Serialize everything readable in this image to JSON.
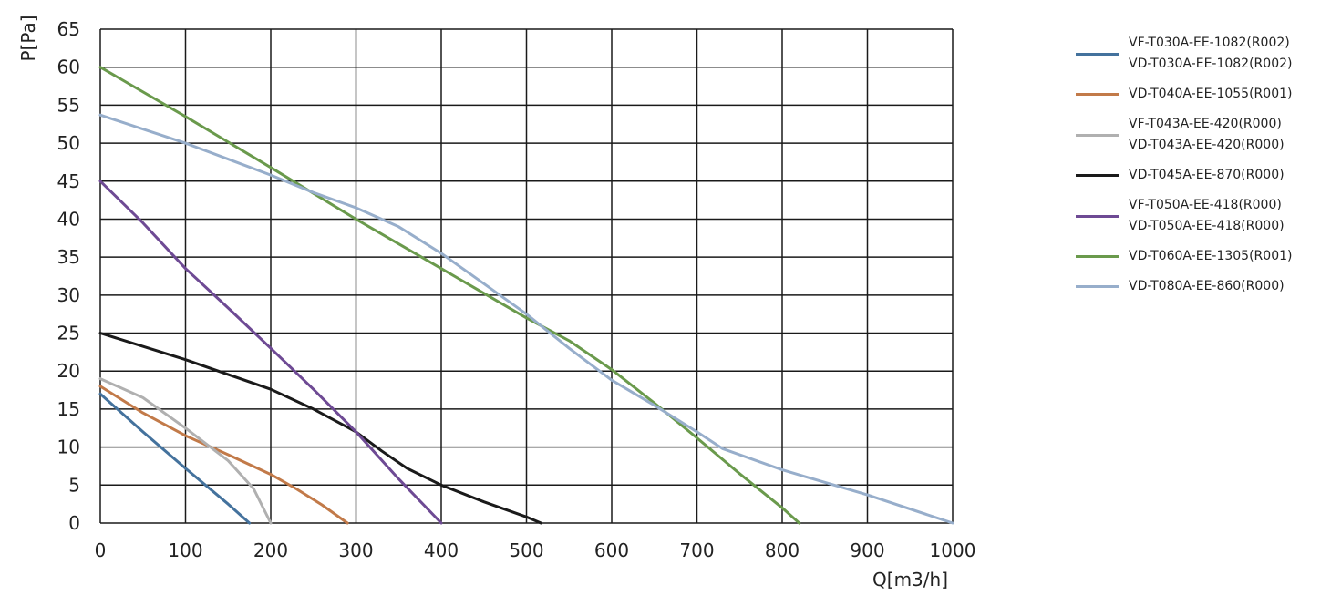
{
  "chart_data": {
    "type": "line",
    "title": "",
    "xlabel": "Q[m3/h]",
    "ylabel": "P[Pa]",
    "xlim": [
      0,
      1000
    ],
    "ylim": [
      0,
      65
    ],
    "xticks": [
      0,
      100,
      200,
      300,
      400,
      500,
      600,
      700,
      800,
      900,
      1000
    ],
    "yticks": [
      0,
      5,
      10,
      15,
      20,
      25,
      30,
      35,
      40,
      45,
      50,
      55,
      60,
      65
    ],
    "grid": true,
    "legend_position": "right",
    "series": [
      {
        "name": "VF-T030A-EE-1082(R002)\nVD-T030A-EE-1082(R002)",
        "color": "#44729d",
        "points": [
          [
            0,
            17
          ],
          [
            50,
            12
          ],
          [
            100,
            7.2
          ],
          [
            150,
            2.5
          ],
          [
            175,
            0
          ]
        ]
      },
      {
        "name": "VD-T040A-EE-1055(R001)",
        "color": "#c27a49",
        "points": [
          [
            0,
            18
          ],
          [
            50,
            14.5
          ],
          [
            100,
            11.5
          ],
          [
            150,
            9
          ],
          [
            200,
            6.4
          ],
          [
            230,
            4.5
          ],
          [
            260,
            2.4
          ],
          [
            290,
            0
          ]
        ]
      },
      {
        "name": "VF-T043A-EE-420(R000)\nVD-T043A-EE-420(R000)",
        "color": "#b0b0b0",
        "points": [
          [
            0,
            19
          ],
          [
            50,
            16.5
          ],
          [
            100,
            12.5
          ],
          [
            150,
            8.2
          ],
          [
            180,
            4.5
          ],
          [
            200,
            0
          ]
        ]
      },
      {
        "name": "VD-T045A-EE-870(R000)",
        "color": "#1a1a1a",
        "points": [
          [
            0,
            25
          ],
          [
            100,
            21.5
          ],
          [
            200,
            17.6
          ],
          [
            250,
            15
          ],
          [
            300,
            12
          ],
          [
            330,
            9.5
          ],
          [
            360,
            7.2
          ],
          [
            400,
            5
          ],
          [
            450,
            2.8
          ],
          [
            500,
            0.8
          ],
          [
            517,
            0
          ]
        ]
      },
      {
        "name": "VF-T050A-EE-418(R000)\nVD-T050A-EE-418(R000)",
        "color": "#6e4a94",
        "points": [
          [
            0,
            45
          ],
          [
            50,
            39.5
          ],
          [
            100,
            33.5
          ],
          [
            150,
            28.3
          ],
          [
            200,
            23
          ],
          [
            250,
            17.6
          ],
          [
            300,
            12
          ],
          [
            350,
            5.8
          ],
          [
            400,
            0
          ]
        ]
      },
      {
        "name": "VD-T060A-EE-1305(R001)",
        "color": "#6a9a4c",
        "points": [
          [
            0,
            60
          ],
          [
            100,
            53.5
          ],
          [
            200,
            46.8
          ],
          [
            300,
            40
          ],
          [
            400,
            33.5
          ],
          [
            500,
            27
          ],
          [
            550,
            24
          ],
          [
            600,
            20.2
          ],
          [
            650,
            15.8
          ],
          [
            700,
            11.2
          ],
          [
            750,
            6.5
          ],
          [
            800,
            2
          ],
          [
            820,
            0
          ]
        ]
      },
      {
        "name": "VD-T080A-EE-860(R000)",
        "color": "#97aecb",
        "points": [
          [
            0,
            53.7
          ],
          [
            100,
            50
          ],
          [
            200,
            45.8
          ],
          [
            250,
            43.5
          ],
          [
            300,
            41.5
          ],
          [
            350,
            39
          ],
          [
            400,
            35.5
          ],
          [
            450,
            31.5
          ],
          [
            500,
            27.5
          ],
          [
            550,
            23
          ],
          [
            600,
            18.8
          ],
          [
            650,
            15.5
          ],
          [
            700,
            12
          ],
          [
            730,
            9.8
          ],
          [
            800,
            7
          ],
          [
            900,
            3.7
          ],
          [
            1000,
            0
          ]
        ]
      }
    ]
  }
}
